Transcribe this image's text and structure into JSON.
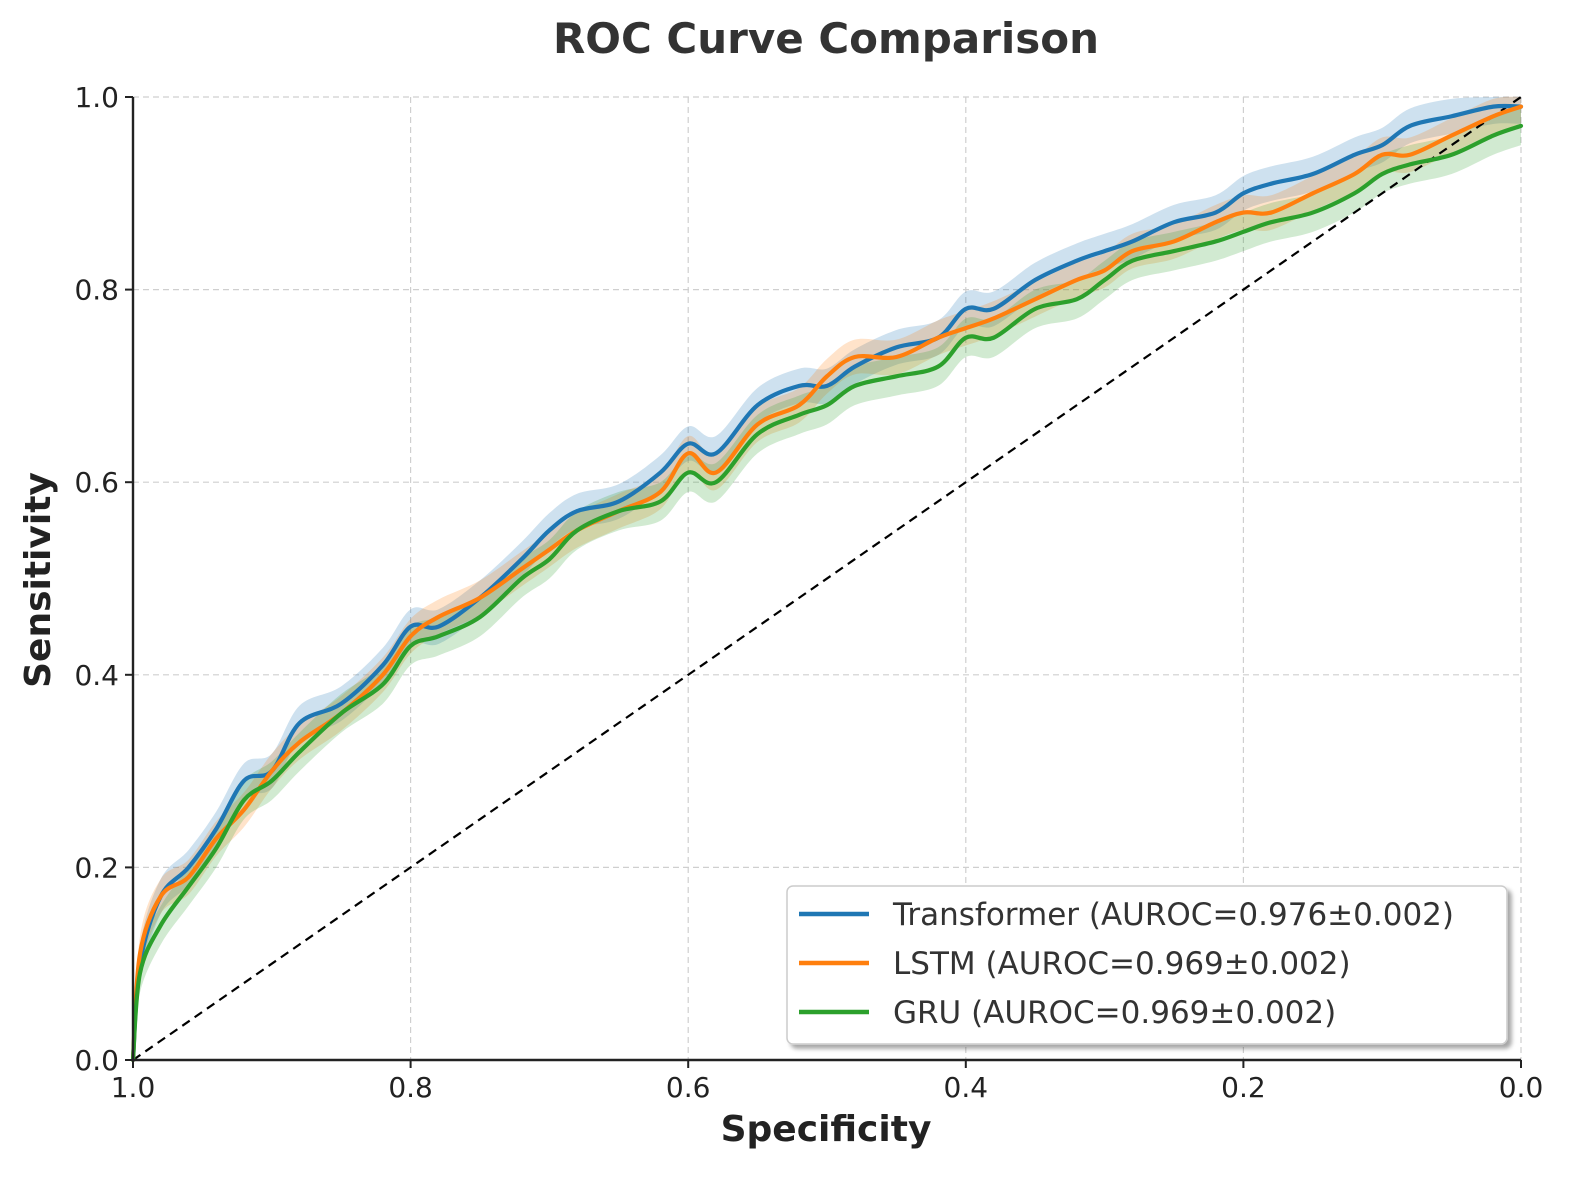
{
  "chart_data": {
    "type": "line",
    "title": "ROC Curve Comparison",
    "xlabel": "Specificity",
    "ylabel": "Sensitivity",
    "xlim": [
      1.0,
      0.0
    ],
    "ylim": [
      0.0,
      1.0
    ],
    "x_inverted": true,
    "grid": true,
    "legend_position": "lower-right",
    "xticks": [
      "1.0",
      "0.8",
      "0.6",
      "0.4",
      "0.2",
      "0.0"
    ],
    "yticks": [
      "0.0",
      "0.2",
      "0.4",
      "0.6",
      "0.8",
      "1.0"
    ],
    "x": [
      1.0,
      0.995,
      0.98,
      0.96,
      0.94,
      0.92,
      0.9,
      0.88,
      0.85,
      0.82,
      0.8,
      0.78,
      0.75,
      0.72,
      0.7,
      0.68,
      0.65,
      0.62,
      0.6,
      0.58,
      0.55,
      0.52,
      0.5,
      0.48,
      0.45,
      0.42,
      0.4,
      0.38,
      0.35,
      0.32,
      0.3,
      0.28,
      0.25,
      0.22,
      0.2,
      0.18,
      0.15,
      0.12,
      0.1,
      0.08,
      0.05,
      0.02,
      0.0
    ],
    "series": [
      {
        "name": "Transformer (AUROC=0.976±0.002)",
        "color": "#1f77b4",
        "ci": 0.018,
        "values": [
          0.0,
          0.1,
          0.17,
          0.2,
          0.24,
          0.29,
          0.3,
          0.35,
          0.37,
          0.41,
          0.45,
          0.45,
          0.48,
          0.52,
          0.55,
          0.57,
          0.58,
          0.61,
          0.64,
          0.63,
          0.68,
          0.7,
          0.7,
          0.72,
          0.74,
          0.75,
          0.78,
          0.78,
          0.81,
          0.83,
          0.84,
          0.85,
          0.87,
          0.88,
          0.9,
          0.91,
          0.92,
          0.94,
          0.95,
          0.97,
          0.98,
          0.99,
          0.99
        ]
      },
      {
        "name": "LSTM (AUROC=0.969±0.002)",
        "color": "#ff7f0e",
        "ci": 0.018,
        "values": [
          0.0,
          0.11,
          0.17,
          0.19,
          0.23,
          0.26,
          0.3,
          0.33,
          0.36,
          0.4,
          0.44,
          0.46,
          0.48,
          0.51,
          0.53,
          0.55,
          0.57,
          0.59,
          0.63,
          0.61,
          0.66,
          0.68,
          0.71,
          0.73,
          0.73,
          0.75,
          0.76,
          0.77,
          0.79,
          0.81,
          0.82,
          0.84,
          0.85,
          0.87,
          0.88,
          0.88,
          0.9,
          0.92,
          0.94,
          0.94,
          0.96,
          0.98,
          0.99
        ]
      },
      {
        "name": "GRU (AUROC=0.969±0.002)",
        "color": "#2ca02c",
        "ci": 0.02,
        "values": [
          0.0,
          0.09,
          0.14,
          0.18,
          0.22,
          0.27,
          0.29,
          0.32,
          0.36,
          0.39,
          0.43,
          0.44,
          0.46,
          0.5,
          0.52,
          0.55,
          0.57,
          0.58,
          0.61,
          0.6,
          0.65,
          0.67,
          0.68,
          0.7,
          0.71,
          0.72,
          0.75,
          0.75,
          0.78,
          0.79,
          0.81,
          0.83,
          0.84,
          0.85,
          0.86,
          0.87,
          0.88,
          0.9,
          0.92,
          0.93,
          0.94,
          0.96,
          0.97
        ]
      }
    ],
    "reference_line": {
      "from": [
        1.0,
        0.0
      ],
      "to": [
        0.0,
        1.0
      ],
      "style": "dashed",
      "color": "#000000"
    }
  }
}
